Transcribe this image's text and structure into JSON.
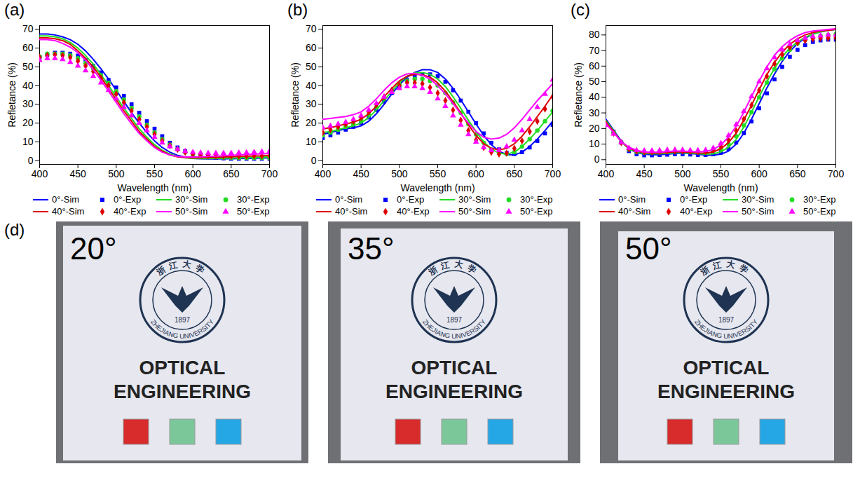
{
  "chart_data": [
    {
      "type": "line",
      "panel": "(a)",
      "xlabel": "Wavelength (nm)",
      "ylabel": "Refletance (%)",
      "xlim": [
        400,
        700
      ],
      "xticks": [
        400,
        450,
        500,
        550,
        600,
        650,
        700
      ],
      "ylim": [
        -2,
        72
      ],
      "yticks": [
        0,
        10,
        20,
        30,
        40,
        50,
        60,
        70
      ],
      "grid": false,
      "legend": "bottom",
      "x": [
        400,
        410,
        420,
        430,
        440,
        450,
        460,
        470,
        480,
        490,
        500,
        510,
        520,
        530,
        540,
        550,
        560,
        570,
        580,
        590,
        600,
        610,
        620,
        630,
        640,
        650,
        660,
        670,
        680,
        690,
        700
      ],
      "series": [
        {
          "name": "0°-Sim",
          "type": "line",
          "line_style": "solid",
          "color": "#0000ff",
          "values": [
            67.5,
            67.5,
            67,
            66,
            64.5,
            62,
            58.5,
            54,
            49,
            43.5,
            37.5,
            31.5,
            25.5,
            20,
            15,
            10.5,
            7,
            4.5,
            2.8,
            1.8,
            1.2,
            1,
            0.9,
            0.9,
            1,
            1,
            1.1,
            1.2,
            1.3,
            1.4,
            1.5
          ]
        },
        {
          "name": "0°-Exp",
          "type": "scatter",
          "marker": "square",
          "color": "#0000ff",
          "values": [
            55,
            56.5,
            57.5,
            57.5,
            57,
            56,
            53.5,
            50.5,
            47,
            43,
            39,
            34.5,
            30,
            25.5,
            21,
            17,
            13,
            9.5,
            7,
            5,
            3.5,
            2.5,
            2,
            1.5,
            1.2,
            1,
            1,
            1,
            1,
            1,
            1
          ]
        },
        {
          "name": "30°-Sim",
          "type": "line",
          "line_style": "solid",
          "color": "#22dd22",
          "values": [
            66.5,
            66.5,
            66,
            65,
            63,
            60,
            56,
            51.5,
            46,
            40,
            34,
            28,
            22.5,
            17,
            12.5,
            8.5,
            5.5,
            3.5,
            2.2,
            1.5,
            1.2,
            1.1,
            1.1,
            1.2,
            1.3,
            1.4,
            1.5,
            1.6,
            1.7,
            1.8,
            1.9
          ]
        },
        {
          "name": "30°-Exp",
          "type": "scatter",
          "marker": "circle",
          "color": "#22dd22",
          "values": [
            55.5,
            57,
            57,
            57,
            56,
            54.5,
            52,
            49,
            45.5,
            41.5,
            37,
            32.5,
            28,
            23.5,
            19,
            15,
            11.5,
            8.5,
            6,
            4.5,
            3.2,
            2.5,
            2,
            1.8,
            1.6,
            1.5,
            1.5,
            1.5,
            1.5,
            1.5,
            1.5
          ]
        },
        {
          "name": "40°-Sim",
          "type": "line",
          "line_style": "solid",
          "color": "#dd0000",
          "values": [
            65.5,
            65.5,
            65,
            64,
            62,
            58.5,
            54.5,
            50,
            44.5,
            38.5,
            32.5,
            26.5,
            21,
            15.5,
            11.5,
            7.5,
            5,
            3,
            2,
            1.6,
            1.5,
            1.5,
            1.6,
            1.7,
            1.9,
            2,
            2.2,
            2.3,
            2.5,
            2.6,
            2.8
          ]
        },
        {
          "name": "40°-Exp",
          "type": "scatter",
          "marker": "diamond",
          "color": "#dd0000",
          "values": [
            55,
            56,
            56.5,
            56,
            55,
            53,
            50.5,
            47.5,
            44,
            40,
            35.5,
            31,
            26.5,
            22,
            18,
            14,
            10.5,
            8,
            6,
            4.5,
            3.5,
            3,
            2.7,
            2.5,
            2.4,
            2.4,
            2.4,
            2.5,
            2.5,
            2.5,
            2.5
          ]
        },
        {
          "name": "50°-Sim",
          "type": "line",
          "line_style": "solid",
          "color": "#ff00ff",
          "values": [
            64.5,
            64.5,
            64,
            62.5,
            60.5,
            57.5,
            53.5,
            48.5,
            43,
            37,
            31,
            25,
            19.5,
            14.5,
            10.5,
            7,
            4.5,
            3,
            2.2,
            1.9,
            1.9,
            2,
            2.2,
            2.4,
            2.6,
            2.8,
            3,
            3.2,
            3.4,
            3.6,
            3.8
          ]
        },
        {
          "name": "50°-Exp",
          "type": "scatter",
          "marker": "triangle",
          "color": "#ff00ff",
          "values": [
            53.5,
            54.5,
            54.5,
            54,
            52.5,
            50.5,
            48,
            45,
            41.5,
            37.5,
            33,
            28.5,
            24,
            20,
            16,
            12.5,
            9.5,
            7.5,
            6,
            5,
            4.5,
            4.2,
            4,
            4,
            4,
            4,
            4.2,
            4.3,
            4.5,
            4.7,
            5
          ]
        }
      ]
    },
    {
      "type": "line",
      "panel": "(b)",
      "xlabel": "Wavelength (nm)",
      "ylabel": "Refletance (%)",
      "xlim": [
        400,
        700
      ],
      "xticks": [
        400,
        450,
        500,
        550,
        600,
        650,
        700
      ],
      "ylim": [
        -2,
        72
      ],
      "yticks": [
        0,
        10,
        20,
        30,
        40,
        50,
        60,
        70
      ],
      "grid": false,
      "legend": "bottom",
      "x": [
        400,
        410,
        420,
        430,
        440,
        450,
        460,
        470,
        480,
        490,
        500,
        510,
        520,
        530,
        540,
        550,
        560,
        570,
        580,
        590,
        600,
        610,
        620,
        630,
        640,
        650,
        660,
        670,
        680,
        690,
        700
      ],
      "series": [
        {
          "name": "0°-Sim",
          "type": "line",
          "line_style": "solid",
          "color": "#0000ff",
          "values": [
            14,
            15,
            16,
            17,
            17.5,
            18.5,
            21,
            25,
            30,
            35.5,
            40.5,
            44.5,
            47,
            48.5,
            48.5,
            47,
            43.5,
            38.5,
            32.5,
            26,
            19.5,
            13.5,
            8.5,
            5,
            3.2,
            3,
            4.5,
            7.5,
            11.5,
            16,
            21
          ]
        },
        {
          "name": "0°-Exp",
          "type": "scatter",
          "marker": "square",
          "color": "#0000ff",
          "values": [
            12,
            13.5,
            15,
            16.5,
            18,
            20,
            23,
            27,
            31.5,
            36,
            40,
            43,
            45,
            46,
            46,
            45,
            42,
            37.5,
            32,
            26,
            20,
            14.5,
            9.5,
            6,
            4,
            3.5,
            4.5,
            7,
            10.5,
            14.5,
            19
          ]
        },
        {
          "name": "30°-Sim",
          "type": "line",
          "line_style": "solid",
          "color": "#22dd22",
          "values": [
            15,
            15.5,
            16.5,
            17.5,
            18.5,
            20,
            23,
            27,
            32,
            37,
            41.5,
            45,
            46.8,
            47,
            46,
            43.5,
            39.5,
            34,
            28,
            21.5,
            15.5,
            10,
            6.2,
            4,
            3.5,
            4.5,
            7.5,
            11.5,
            16,
            21,
            26
          ]
        },
        {
          "name": "30°-Exp",
          "type": "scatter",
          "marker": "circle",
          "color": "#22dd22",
          "values": [
            13.5,
            15,
            16.5,
            18,
            19.5,
            21.5,
            24.5,
            28.5,
            33,
            37,
            40.5,
            42.5,
            43.5,
            43.5,
            42.5,
            40,
            36,
            31,
            25.5,
            19.5,
            14,
            9.5,
            6,
            4,
            3.5,
            4.5,
            7.5,
            11.5,
            16,
            21,
            26.5
          ]
        },
        {
          "name": "40°-Sim",
          "type": "line",
          "line_style": "solid",
          "color": "#dd0000",
          "values": [
            17,
            17.5,
            18.5,
            19.5,
            20.5,
            22,
            25,
            29,
            34,
            38.5,
            42.5,
            45,
            46,
            45.8,
            44.5,
            41.5,
            37,
            31.5,
            25.5,
            19,
            13.5,
            9,
            6.5,
            5.8,
            6.5,
            9,
            13,
            18,
            23.5,
            29,
            35
          ]
        },
        {
          "name": "40°-Exp",
          "type": "scatter",
          "marker": "diamond",
          "color": "#dd0000",
          "values": [
            15,
            16.5,
            18,
            19.5,
            21,
            23,
            26,
            30,
            34,
            37.5,
            40,
            41.5,
            41.5,
            41,
            39,
            36,
            32,
            27,
            21.5,
            16,
            11,
            7,
            4.5,
            3.5,
            4,
            6.5,
            10.5,
            15.5,
            21,
            27.5,
            34
          ]
        },
        {
          "name": "50°-Sim",
          "type": "line",
          "line_style": "solid",
          "color": "#ff00ff",
          "values": [
            22,
            22.5,
            23,
            23.5,
            24.5,
            26,
            29,
            33,
            37.5,
            41.5,
            44.5,
            46.2,
            46.5,
            45.5,
            43.5,
            40,
            35.5,
            30.5,
            25,
            20,
            15.5,
            12.5,
            11.5,
            12,
            14,
            17.5,
            22,
            27,
            32,
            36.5,
            41
          ]
        },
        {
          "name": "50°-Exp",
          "type": "scatter",
          "marker": "triangle",
          "color": "#ff00ff",
          "values": [
            17.5,
            18.5,
            19.5,
            20.5,
            22,
            24,
            27,
            30.5,
            34,
            36.5,
            38.5,
            39.5,
            39.5,
            38.5,
            36.5,
            33,
            29,
            24,
            19,
            14,
            10,
            7,
            5.5,
            5.5,
            7.5,
            11,
            16,
            22,
            28.5,
            35.5,
            43
          ]
        }
      ]
    },
    {
      "type": "line",
      "panel": "(c)",
      "xlabel": "Wavelength (nm)",
      "ylabel": "Refletance (%)",
      "xlim": [
        400,
        700
      ],
      "xticks": [
        400,
        450,
        500,
        550,
        600,
        650,
        700
      ],
      "ylim": [
        -3,
        86
      ],
      "yticks": [
        0,
        10,
        20,
        30,
        40,
        50,
        60,
        70,
        80
      ],
      "grid": false,
      "legend": "bottom",
      "x": [
        400,
        410,
        420,
        430,
        440,
        450,
        460,
        470,
        480,
        490,
        500,
        510,
        520,
        530,
        540,
        550,
        560,
        570,
        580,
        590,
        600,
        610,
        620,
        630,
        640,
        650,
        660,
        670,
        680,
        690,
        700
      ],
      "series": [
        {
          "name": "0°-Sim",
          "type": "line",
          "line_style": "solid",
          "color": "#0000ff",
          "values": [
            26,
            19,
            12,
            7,
            4.5,
            3.5,
            3.2,
            3.2,
            3.5,
            4,
            4.2,
            4,
            3.5,
            3,
            3,
            3.5,
            5.5,
            10,
            17,
            26,
            36,
            46,
            55,
            63,
            69.5,
            74.5,
            78,
            80.5,
            82,
            83,
            83.5
          ]
        },
        {
          "name": "0°-Exp",
          "type": "scatter",
          "marker": "square",
          "color": "#0000ff",
          "values": [
            24,
            18,
            11,
            5.5,
            3.5,
            2.8,
            2.8,
            3,
            3.2,
            3.5,
            3.5,
            3.3,
            3,
            3,
            3.5,
            4.5,
            7,
            11,
            17,
            24.5,
            33,
            42.5,
            51.5,
            59.5,
            66,
            70.5,
            73.5,
            75.5,
            76.5,
            77,
            77
          ]
        },
        {
          "name": "30°-Sim",
          "type": "line",
          "line_style": "solid",
          "color": "#22dd22",
          "values": [
            25,
            18.5,
            11.5,
            7,
            5,
            4,
            3.8,
            3.8,
            4,
            4.5,
            4.5,
            4.2,
            3.8,
            3.5,
            3.7,
            5,
            8,
            13,
            21,
            30.5,
            40.5,
            50,
            58.5,
            66,
            71.5,
            75.5,
            78.5,
            80.5,
            82,
            83,
            83.5
          ]
        },
        {
          "name": "30°-Exp",
          "type": "scatter",
          "marker": "circle",
          "color": "#22dd22",
          "values": [
            23,
            17.5,
            11,
            6.5,
            5,
            4.5,
            4.5,
            4.7,
            5,
            5.2,
            5.2,
            5,
            4.8,
            4.8,
            5.5,
            7,
            10,
            15,
            22,
            30.5,
            40,
            49.5,
            58,
            65,
            70.5,
            74.5,
            77,
            78.5,
            79.5,
            80,
            80.5
          ]
        },
        {
          "name": "40°-Sim",
          "type": "line",
          "line_style": "solid",
          "color": "#dd0000",
          "values": [
            24,
            18,
            11.5,
            7.5,
            5.5,
            4.5,
            4.3,
            4.3,
            4.6,
            5,
            5,
            4.7,
            4.3,
            4.2,
            5,
            7,
            11,
            17,
            25.5,
            35,
            45,
            54.5,
            62.5,
            69,
            74,
            77.5,
            80,
            81.5,
            82.5,
            83,
            83.5
          ]
        },
        {
          "name": "40°-Exp",
          "type": "scatter",
          "marker": "diamond",
          "color": "#dd0000",
          "values": [
            23,
            17,
            11,
            7,
            5.5,
            5,
            5,
            5.2,
            5.5,
            5.6,
            5.5,
            5.3,
            5.2,
            5.3,
            6.2,
            8.5,
            12.5,
            18.5,
            26,
            35,
            44.5,
            53.5,
            61.5,
            67.5,
            72,
            75,
            76.5,
            77.5,
            78,
            78,
            78
          ]
        },
        {
          "name": "50°-Sim",
          "type": "line",
          "line_style": "solid",
          "color": "#ff00ff",
          "values": [
            23,
            17.5,
            11.5,
            8,
            6,
            5,
            4.8,
            4.8,
            5.2,
            5.5,
            5.5,
            5.2,
            5,
            5.2,
            6.5,
            9.5,
            14.5,
            21.5,
            30.5,
            40.5,
            50.5,
            59.5,
            67,
            72.5,
            76.5,
            79.5,
            81.5,
            82.5,
            83,
            83.5,
            84
          ]
        },
        {
          "name": "50°-Exp",
          "type": "scatter",
          "marker": "triangle",
          "color": "#ff00ff",
          "values": [
            22,
            16.5,
            11,
            7.5,
            6,
            5.8,
            5.8,
            6,
            6.2,
            6.3,
            6.2,
            6,
            6,
            6.2,
            7.5,
            10.5,
            15.5,
            22.5,
            31,
            40.5,
            50,
            58.5,
            65.5,
            70.5,
            74,
            76.5,
            78,
            79,
            79.5,
            80,
            80
          ]
        }
      ]
    }
  ],
  "photo_panel": {
    "panel": "(d)",
    "photos": [
      {
        "angle": "20°"
      },
      {
        "angle": "35°"
      },
      {
        "angle": "50°"
      }
    ],
    "sign": {
      "seal_text": "浙江大学",
      "seal_ring": "ZHEJIANG UNIVERSITY",
      "seal_year": "1897",
      "lines": [
        "OPTICAL",
        "ENGINEERING"
      ]
    },
    "samples": {
      "colors": [
        "#d82c2c",
        "#7cc79a",
        "#25a7e6"
      ]
    }
  }
}
